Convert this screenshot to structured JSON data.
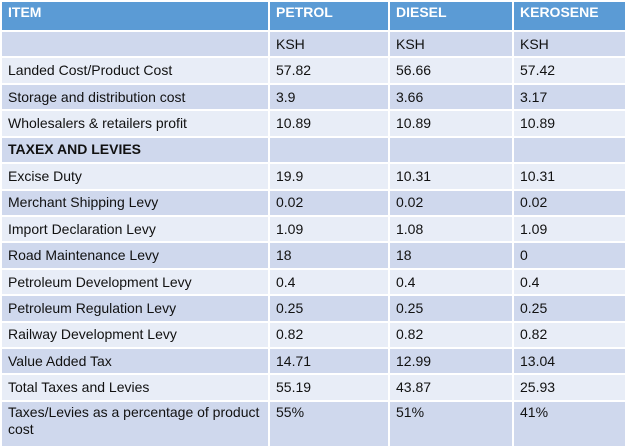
{
  "table": {
    "header": [
      "ITEM",
      "PETROL",
      "DIESEL",
      "KEROSENE"
    ],
    "rows": [
      [
        "",
        "KSH",
        "KSH",
        "KSH"
      ],
      [
        "Landed Cost/Product Cost",
        "57.82",
        "56.66",
        "57.42"
      ],
      [
        "Storage and distribution cost",
        "3.9",
        "3.66",
        "3.17"
      ],
      [
        "Wholesalers & retailers profit",
        "10.89",
        "10.89",
        "10.89"
      ],
      [
        "TAXEX AND LEVIES",
        "",
        "",
        ""
      ],
      [
        "Excise Duty",
        "19.9",
        "10.31",
        "10.31"
      ],
      [
        "Merchant Shipping Levy",
        "0.02",
        "0.02",
        "0.02"
      ],
      [
        "Import Declaration Levy",
        "1.09",
        "1.08",
        "1.09"
      ],
      [
        "Road Maintenance Levy",
        "18",
        "18",
        "0"
      ],
      [
        "Petroleum Development Levy",
        "0.4",
        "0.4",
        "0.4"
      ],
      [
        "Petroleum Regulation Levy",
        "0.25",
        "0.25",
        "0.25"
      ],
      [
        "Railway Development Levy",
        "0.82",
        "0.82",
        "0.82"
      ],
      [
        "Value Added Tax",
        "14.71",
        "12.99",
        "13.04"
      ],
      [
        "Total Taxes and Levies",
        "55.19",
        "43.87",
        "25.93"
      ],
      [
        "Taxes/Levies as a percentage of product cost",
        "55%",
        "51%",
        "41%"
      ]
    ]
  }
}
